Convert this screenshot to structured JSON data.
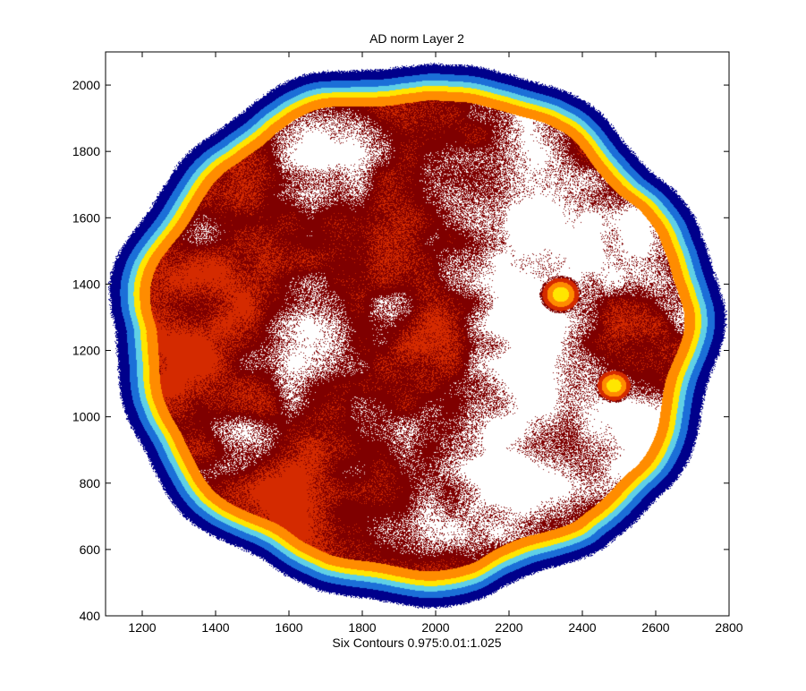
{
  "chart_data": {
    "type": "heatmap",
    "title": "AD norm Layer 2",
    "xlabel": "Six Contours 0.975:0.01:1.025",
    "ylabel": "",
    "xlim": [
      1100,
      2800
    ],
    "ylim": [
      400,
      2100
    ],
    "x_ticks": [
      1200,
      1400,
      1600,
      1800,
      2000,
      2200,
      2400,
      2600,
      2800
    ],
    "y_ticks": [
      400,
      600,
      800,
      1000,
      1200,
      1400,
      1600,
      1800,
      2000
    ],
    "x_tick_labels": [
      "1200",
      "1400",
      "1600",
      "1800",
      "2000",
      "2200",
      "2400",
      "2600",
      "2800"
    ],
    "y_tick_labels": [
      "400",
      "600",
      "800",
      "1000",
      "1200",
      "1400",
      "1600",
      "1800",
      "2000"
    ],
    "contour_levels": [
      0.975,
      0.985,
      0.995,
      1.005,
      1.015,
      1.025
    ],
    "colormap": [
      "#7f0000",
      "#d42a00",
      "#ff8c00",
      "#ffe600",
      "#5fd0e6",
      "#1b6fd8",
      "#00008b"
    ],
    "grid": false,
    "legend": "none",
    "region": {
      "center_x": 1945,
      "center_y": 1255,
      "radius_x": 825,
      "radius_y": 810
    },
    "spots": [
      {
        "x": 2340,
        "y": 1370,
        "r": 50
      },
      {
        "x": 2485,
        "y": 1095,
        "r": 45
      }
    ]
  }
}
